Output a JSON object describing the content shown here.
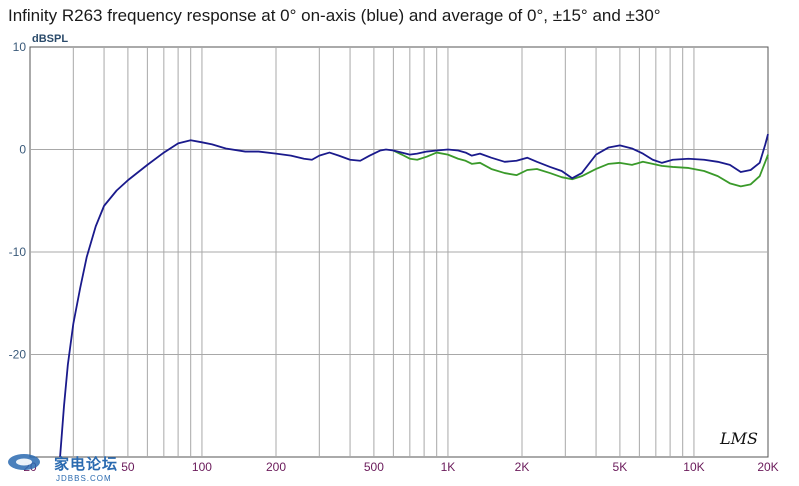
{
  "chart_data": {
    "type": "line",
    "title": "Infinity R263 frequency response at 0° on-axis (blue) and average of 0°, ±15° and ±30°",
    "ylabel": "dBSPL",
    "xscale": "log",
    "xlim": [
      20,
      20000
    ],
    "ylim": [
      -30,
      10
    ],
    "yticks": [
      {
        "value": 10,
        "label": "10"
      },
      {
        "value": 0,
        "label": "0"
      },
      {
        "value": -10,
        "label": "-10"
      },
      {
        "value": -20,
        "label": "-20"
      }
    ],
    "xticks": [
      {
        "value": 20,
        "label": "20"
      },
      {
        "value": 50,
        "label": "50"
      },
      {
        "value": 100,
        "label": "100"
      },
      {
        "value": 200,
        "label": "200"
      },
      {
        "value": 500,
        "label": "500"
      },
      {
        "value": 1000,
        "label": "1K"
      },
      {
        "value": 2000,
        "label": "2K"
      },
      {
        "value": 5000,
        "label": "5K"
      },
      {
        "value": 10000,
        "label": "10K"
      },
      {
        "value": 20000,
        "label": "20K"
      }
    ],
    "grid": true,
    "annotation": "LMS",
    "series": [
      {
        "color": "#1a1a8c",
        "points": [
          [
            26.5,
            -30
          ],
          [
            27.5,
            -25
          ],
          [
            28.5,
            -21
          ],
          [
            30,
            -17
          ],
          [
            32,
            -13.5
          ],
          [
            34,
            -10.5
          ],
          [
            37,
            -7.5
          ],
          [
            40,
            -5.5
          ],
          [
            45,
            -4
          ],
          [
            50,
            -3
          ],
          [
            60,
            -1.5
          ],
          [
            70,
            -0.3
          ],
          [
            80,
            0.6
          ],
          [
            90,
            0.9
          ],
          [
            100,
            0.7
          ],
          [
            110,
            0.5
          ],
          [
            125,
            0.1
          ],
          [
            150,
            -0.2
          ],
          [
            170,
            -0.2
          ],
          [
            200,
            -0.4
          ],
          [
            230,
            -0.6
          ],
          [
            260,
            -0.9
          ],
          [
            280,
            -1.0
          ],
          [
            300,
            -0.6
          ],
          [
            330,
            -0.3
          ],
          [
            360,
            -0.6
          ],
          [
            400,
            -1.0
          ],
          [
            440,
            -1.1
          ],
          [
            480,
            -0.6
          ],
          [
            530,
            -0.1
          ],
          [
            560,
            0.0
          ],
          [
            600,
            -0.1
          ],
          [
            650,
            -0.3
          ],
          [
            700,
            -0.5
          ],
          [
            750,
            -0.4
          ],
          [
            820,
            -0.2
          ],
          [
            900,
            -0.1
          ],
          [
            1000,
            0.0
          ],
          [
            1100,
            -0.1
          ],
          [
            1180,
            -0.3
          ],
          [
            1250,
            -0.6
          ],
          [
            1350,
            -0.4
          ],
          [
            1500,
            -0.8
          ],
          [
            1700,
            -1.2
          ],
          [
            1900,
            -1.1
          ],
          [
            2100,
            -0.8
          ],
          [
            2300,
            -1.2
          ],
          [
            2600,
            -1.7
          ],
          [
            2900,
            -2.1
          ],
          [
            3200,
            -2.8
          ],
          [
            3500,
            -2.3
          ],
          [
            4000,
            -0.5
          ],
          [
            4500,
            0.2
          ],
          [
            5000,
            0.4
          ],
          [
            5600,
            0.1
          ],
          [
            6200,
            -0.4
          ],
          [
            6800,
            -1.0
          ],
          [
            7400,
            -1.3
          ],
          [
            8200,
            -1.0
          ],
          [
            9500,
            -0.9
          ],
          [
            11000,
            -1.0
          ],
          [
            12500,
            -1.2
          ],
          [
            14000,
            -1.5
          ],
          [
            15500,
            -2.2
          ],
          [
            17000,
            -2.0
          ],
          [
            18500,
            -1.3
          ],
          [
            19500,
            0.5
          ],
          [
            20000,
            1.5
          ]
        ]
      },
      {
        "color": "#3a9a2a",
        "points": [
          [
            600,
            -0.1
          ],
          [
            650,
            -0.5
          ],
          [
            700,
            -0.9
          ],
          [
            750,
            -1.0
          ],
          [
            820,
            -0.7
          ],
          [
            900,
            -0.3
          ],
          [
            1000,
            -0.5
          ],
          [
            1100,
            -0.9
          ],
          [
            1180,
            -1.1
          ],
          [
            1250,
            -1.4
          ],
          [
            1350,
            -1.3
          ],
          [
            1500,
            -1.9
          ],
          [
            1700,
            -2.3
          ],
          [
            1900,
            -2.5
          ],
          [
            2100,
            -2.0
          ],
          [
            2300,
            -1.9
          ],
          [
            2600,
            -2.3
          ],
          [
            2900,
            -2.7
          ],
          [
            3200,
            -2.9
          ],
          [
            3500,
            -2.6
          ],
          [
            4000,
            -1.9
          ],
          [
            4500,
            -1.4
          ],
          [
            5000,
            -1.3
          ],
          [
            5600,
            -1.5
          ],
          [
            6200,
            -1.2
          ],
          [
            6800,
            -1.4
          ],
          [
            7400,
            -1.6
          ],
          [
            8200,
            -1.7
          ],
          [
            9500,
            -1.8
          ],
          [
            11000,
            -2.1
          ],
          [
            12500,
            -2.6
          ],
          [
            14000,
            -3.3
          ],
          [
            15500,
            -3.6
          ],
          [
            17000,
            -3.4
          ],
          [
            18500,
            -2.6
          ],
          [
            19500,
            -1.2
          ],
          [
            20000,
            -0.5
          ]
        ]
      }
    ]
  },
  "watermark": {
    "text": "家电论坛",
    "sub": "JDBBS.COM"
  }
}
